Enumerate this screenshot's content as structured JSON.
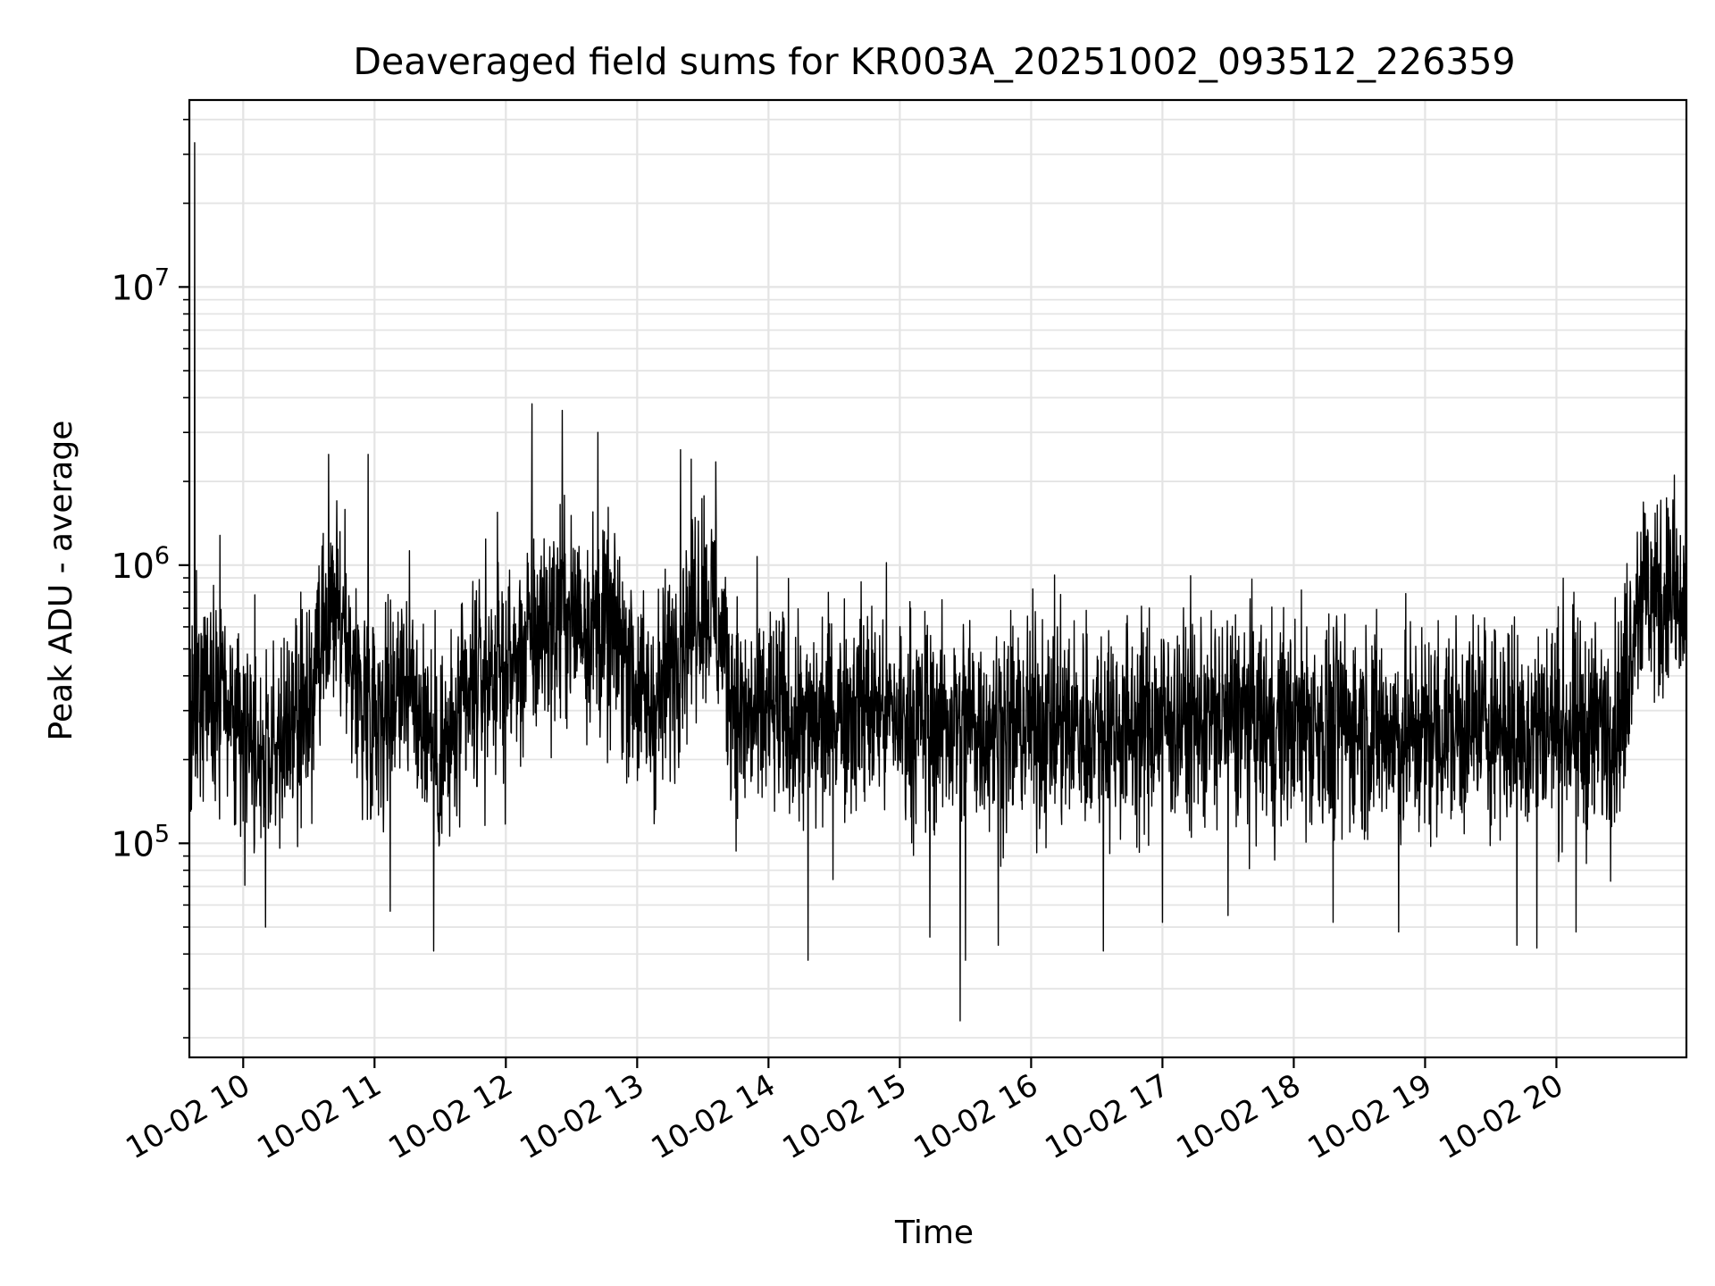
{
  "chart_data": {
    "type": "line",
    "title": "Deaveraged field sums for KR003A_20251002_093512_226359",
    "xlabel": "Time",
    "ylabel": "Peak ADU - average",
    "y_scale": "log",
    "x_unit": "hours since 10-02 00:00",
    "xlim": [
      9.59,
      20.99
    ],
    "ylim": [
      17000,
      47000000
    ],
    "grid": true,
    "x_ticks": [
      {
        "value": 10,
        "label": "10-02 10"
      },
      {
        "value": 11,
        "label": "10-02 11"
      },
      {
        "value": 12,
        "label": "10-02 12"
      },
      {
        "value": 13,
        "label": "10-02 13"
      },
      {
        "value": 14,
        "label": "10-02 14"
      },
      {
        "value": 15,
        "label": "10-02 15"
      },
      {
        "value": 16,
        "label": "10-02 16"
      },
      {
        "value": 17,
        "label": "10-02 17"
      },
      {
        "value": 18,
        "label": "10-02 18"
      },
      {
        "value": 19,
        "label": "10-02 19"
      },
      {
        "value": 20,
        "label": "10-02 20"
      }
    ],
    "y_ticks": [
      {
        "value": 100000,
        "base": "10",
        "exp": "5"
      },
      {
        "value": 1000000,
        "base": "10",
        "exp": "6"
      },
      {
        "value": 10000000,
        "base": "10",
        "exp": "7"
      }
    ],
    "series": [
      {
        "name": "Deaveraged field sum",
        "color": "#000000",
        "x": [
          9.6,
          9.65,
          9.75,
          9.85,
          9.95,
          10.1,
          10.2,
          10.3,
          10.4,
          10.5,
          10.6,
          10.65,
          10.7,
          10.8,
          10.9,
          11.0,
          11.1,
          11.2,
          11.3,
          11.4,
          11.5,
          11.6,
          11.7,
          11.8,
          11.9,
          12.0,
          12.1,
          12.2,
          12.3,
          12.4,
          12.5,
          12.6,
          12.7,
          12.8,
          12.9,
          13.0,
          13.1,
          13.2,
          13.3,
          13.4,
          13.5,
          13.6,
          13.7,
          13.8,
          13.9,
          14.0,
          14.2,
          14.3,
          14.5,
          14.7,
          15.0,
          15.2,
          15.5,
          15.8,
          16.0,
          16.3,
          16.5,
          16.8,
          17.0,
          17.3,
          17.5,
          17.8,
          18.0,
          18.3,
          18.5,
          18.8,
          19.0,
          19.3,
          19.5,
          19.7,
          19.8,
          20.0,
          20.3,
          20.5,
          20.6,
          20.65,
          20.8,
          20.9,
          20.95,
          20.98
        ],
        "y": [
          300000,
          330000,
          350000,
          330000,
          280000,
          240000,
          210000,
          230000,
          260000,
          300000,
          460000,
          550000,
          700000,
          500000,
          330000,
          330000,
          300000,
          450000,
          330000,
          270000,
          200000,
          230000,
          300000,
          380000,
          430000,
          420000,
          450000,
          550000,
          600000,
          650000,
          660000,
          650000,
          600000,
          550000,
          500000,
          360000,
          300000,
          350000,
          500000,
          650000,
          800000,
          650000,
          400000,
          280000,
          280000,
          290000,
          280000,
          250000,
          300000,
          320000,
          280000,
          270000,
          280000,
          260000,
          270000,
          260000,
          270000,
          260000,
          280000,
          270000,
          290000,
          260000,
          270000,
          260000,
          270000,
          240000,
          250000,
          260000,
          280000,
          250000,
          260000,
          270000,
          250000,
          300000,
          750000,
          850000,
          720000,
          800000,
          600000,
          750000
        ],
        "spikes_high": [
          {
            "x": 9.63,
            "y": 33000000
          },
          {
            "x": 10.65,
            "y": 2500000
          },
          {
            "x": 10.95,
            "y": 2500000
          },
          {
            "x": 12.2,
            "y": 3800000
          },
          {
            "x": 12.43,
            "y": 3600000
          },
          {
            "x": 12.7,
            "y": 3000000
          },
          {
            "x": 13.33,
            "y": 2600000
          },
          {
            "x": 13.6,
            "y": 2350000
          },
          {
            "x": 16.2,
            "y": 600000
          },
          {
            "x": 18.1,
            "y": 600000
          },
          {
            "x": 20.85,
            "y": 1600000
          },
          {
            "x": 20.99,
            "y": 7000000
          }
        ],
        "spikes_low": [
          {
            "x": 10.17,
            "y": 50000
          },
          {
            "x": 11.12,
            "y": 57000
          },
          {
            "x": 11.45,
            "y": 41000
          },
          {
            "x": 14.3,
            "y": 38000
          },
          {
            "x": 15.23,
            "y": 46000
          },
          {
            "x": 15.46,
            "y": 23000
          },
          {
            "x": 15.5,
            "y": 38000
          },
          {
            "x": 15.75,
            "y": 43000
          },
          {
            "x": 16.55,
            "y": 41000
          },
          {
            "x": 17.0,
            "y": 52000
          },
          {
            "x": 17.5,
            "y": 55000
          },
          {
            "x": 18.3,
            "y": 52000
          },
          {
            "x": 18.8,
            "y": 48000
          },
          {
            "x": 19.7,
            "y": 43000
          },
          {
            "x": 19.85,
            "y": 42000
          },
          {
            "x": 20.15,
            "y": 48000
          }
        ]
      }
    ]
  }
}
